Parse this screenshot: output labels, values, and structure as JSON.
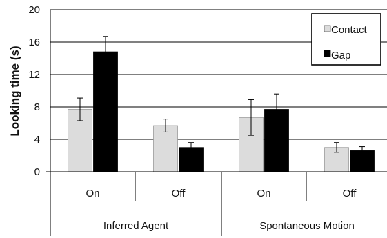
{
  "chart_data": {
    "type": "bar",
    "title": "",
    "ylabel": "Looking time (s)",
    "ylim": [
      0,
      20
    ],
    "yticks": [
      "0",
      "4",
      "8",
      "12",
      "16",
      "20"
    ],
    "grid": true,
    "legend_position": "top-right",
    "groups": [
      {
        "label": "Inferred Agent",
        "categories": [
          "On",
          "Off"
        ]
      },
      {
        "label": "Spontaneous Motion",
        "categories": [
          "On",
          "Off"
        ]
      }
    ],
    "series": [
      {
        "name": "Contact",
        "color": "#dcdcdc",
        "values": [
          7.7,
          5.7,
          6.7,
          3.0
        ],
        "errors": [
          1.4,
          0.8,
          2.2,
          0.6
        ]
      },
      {
        "name": "Gap",
        "color": "#000000",
        "values": [
          14.8,
          3.0,
          7.7,
          2.6
        ],
        "errors": [
          1.9,
          0.6,
          1.9,
          0.5
        ]
      }
    ]
  }
}
